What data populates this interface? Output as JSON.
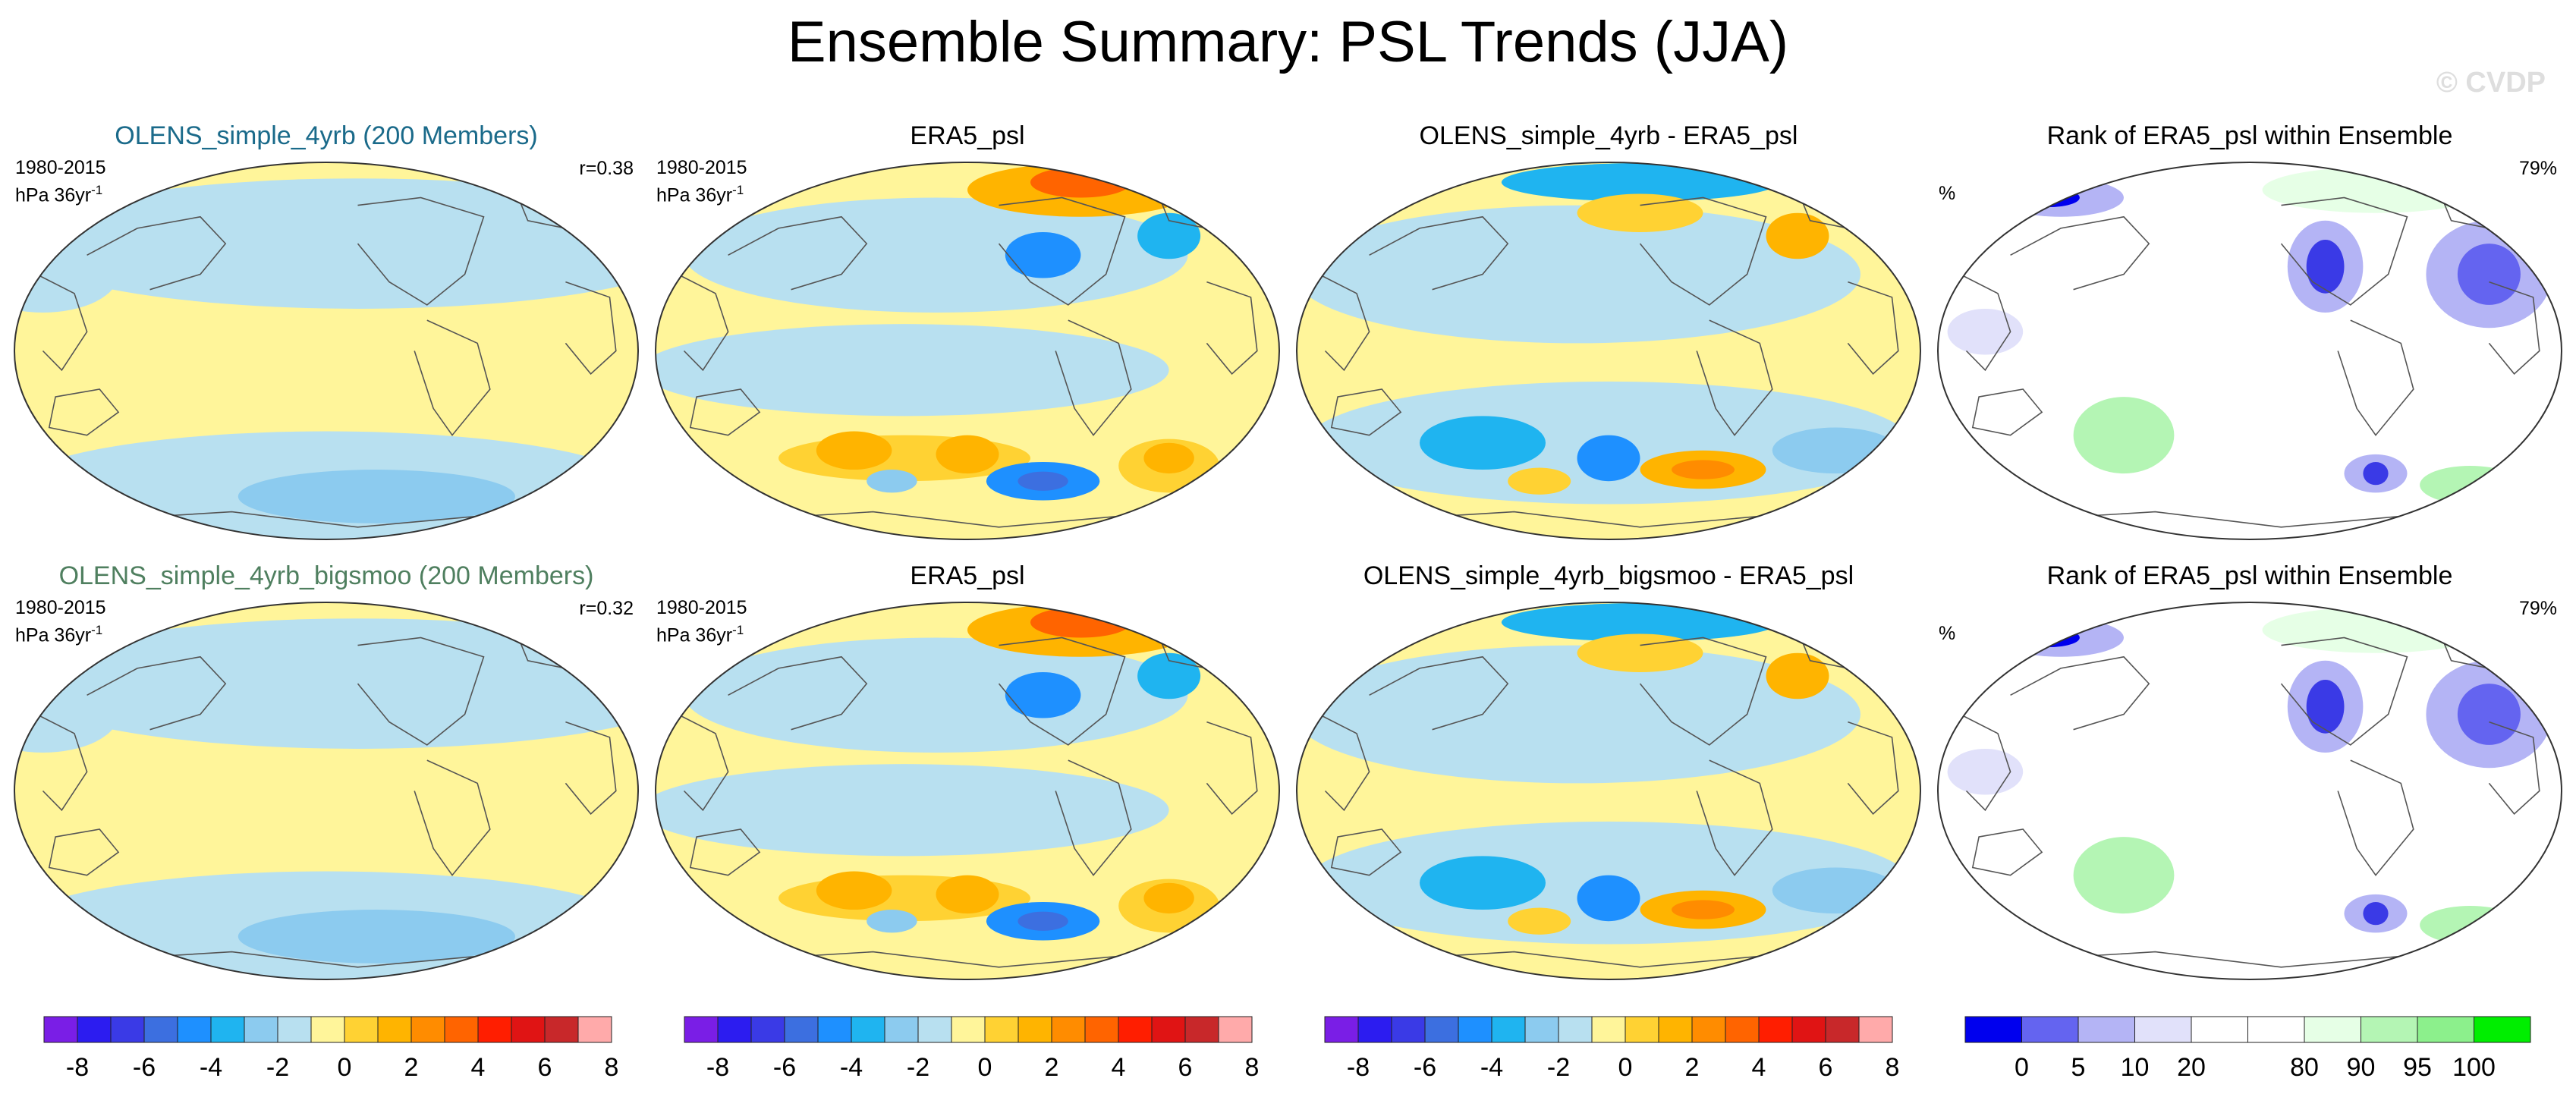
{
  "figure": {
    "title": "Ensemble Summary: PSL Trends (JJA)",
    "watermark": "© CVDP"
  },
  "rows": [
    {
      "panels": [
        {
          "kind": "ens",
          "title": "OLENS_simple_4yrb (200 Members)",
          "title_color": "#1a6a8a",
          "period": "1980-2015",
          "units": "hPa 36yr",
          "units_sup": "-1",
          "stat": "r=0.38"
        },
        {
          "kind": "obs",
          "title": "ERA5_psl",
          "title_color": "#000000",
          "period": "1980-2015",
          "units": "hPa 36yr",
          "units_sup": "-1",
          "stat": ""
        },
        {
          "kind": "diff",
          "title": "OLENS_simple_4yrb - ERA5_psl",
          "title_color": "#000000",
          "period": "",
          "units": "",
          "units_sup": "",
          "stat": ""
        },
        {
          "kind": "rank",
          "title": "Rank of ERA5_psl within Ensemble",
          "title_color": "#000000",
          "period": "%",
          "units": "",
          "units_sup": "",
          "stat": "79%"
        }
      ]
    },
    {
      "panels": [
        {
          "kind": "ens",
          "title": "OLENS_simple_4yrb_bigsmoo (200 Members)",
          "title_color": "#4f7f5f",
          "period": "1980-2015",
          "units": "hPa 36yr",
          "units_sup": "-1",
          "stat": "r=0.32"
        },
        {
          "kind": "obs",
          "title": "ERA5_psl",
          "title_color": "#000000",
          "period": "1980-2015",
          "units": "hPa 36yr",
          "units_sup": "-1",
          "stat": ""
        },
        {
          "kind": "diff",
          "title": "OLENS_simple_4yrb_bigsmoo - ERA5_psl",
          "title_color": "#000000",
          "period": "",
          "units": "",
          "units_sup": "",
          "stat": ""
        },
        {
          "kind": "rank",
          "title": "Rank of ERA5_psl within Ensemble",
          "title_color": "#000000",
          "period": "%",
          "units": "",
          "units_sup": "",
          "stat": "79%"
        }
      ]
    }
  ],
  "colorbars": {
    "trend": {
      "colors": [
        "#7a1ee6",
        "#2c1cf0",
        "#3a3ae6",
        "#3c6fe0",
        "#1e90ff",
        "#1fb4f0",
        "#8ccbef",
        "#b8e0f0",
        "#fff59a",
        "#ffd233",
        "#ffb400",
        "#ff8c00",
        "#ff6400",
        "#ff1e00",
        "#e01414",
        "#c8282a",
        "#ffaaaa"
      ],
      "tick_labels": [
        "-8",
        "-6",
        "-4",
        "-2",
        "0",
        "2",
        "4",
        "6",
        "8"
      ]
    },
    "rank": {
      "colors": [
        "#0000ee",
        "#6464f0",
        "#b4b4f5",
        "#e1e1fa",
        "#ffffff",
        "#ffffff",
        "#e6ffe6",
        "#b4f5b4",
        "#8cf08c",
        "#00ee00"
      ],
      "tick_labels": [
        "0",
        "5",
        "10",
        "20",
        "80",
        "90",
        "95",
        "100"
      ]
    }
  }
}
